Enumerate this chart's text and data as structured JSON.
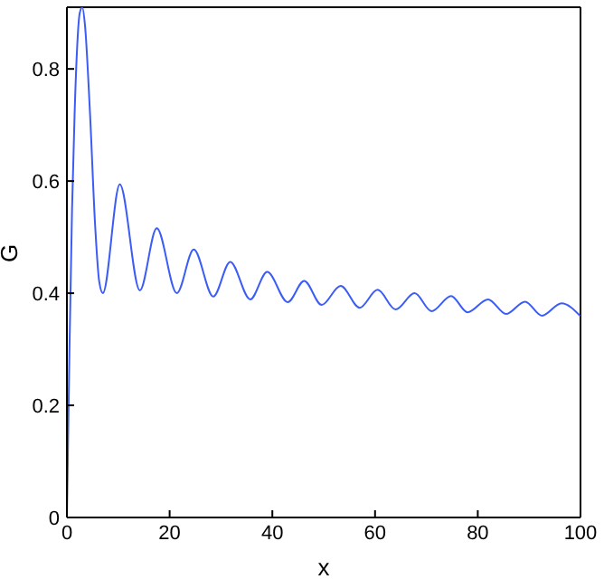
{
  "chart_data": {
    "type": "line",
    "xlabel": "x",
    "ylabel": "G",
    "xlim": [
      0,
      100
    ],
    "ylim": [
      0,
      0.91
    ],
    "xticks": [
      0,
      20,
      40,
      60,
      80,
      100
    ],
    "yticks": [
      0,
      0.2,
      0.4,
      0.6,
      0.8
    ],
    "grid": false,
    "marker": "none",
    "line_style": "solid",
    "series": [
      {
        "color": "#3b5cf5",
        "x": [
          0,
          0.5,
          1,
          1.5,
          2,
          2.5,
          3,
          3.5,
          4.5,
          5.5,
          6.3,
          7,
          10.3,
          14.2,
          17.5,
          21.4,
          24.7,
          28.5,
          31.8,
          35.7,
          39,
          43,
          46.2,
          49.6,
          53.3,
          57,
          60.5,
          64,
          67.7,
          71,
          74.8,
          78,
          82,
          85.5,
          89.2,
          92.5,
          96.3,
          100
        ],
        "values": [
          0,
          0.3,
          0.55,
          0.72,
          0.84,
          0.9,
          0.91,
          0.88,
          0.72,
          0.52,
          0.42,
          0.4,
          0.594,
          0.405,
          0.516,
          0.4,
          0.478,
          0.394,
          0.456,
          0.389,
          0.438,
          0.384,
          0.422,
          0.379,
          0.413,
          0.374,
          0.406,
          0.371,
          0.4,
          0.368,
          0.395,
          0.366,
          0.389,
          0.363,
          0.385,
          0.36,
          0.382,
          0.359
        ]
      }
    ]
  }
}
